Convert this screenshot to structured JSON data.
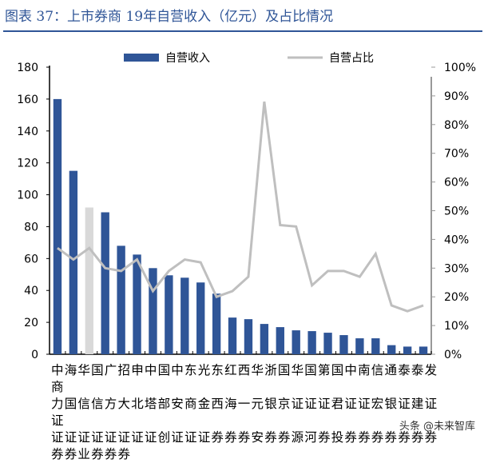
{
  "title": "图表 37：上市券商 19年自营收入（亿元）及占比情况",
  "watermark": "头条 @未来智库",
  "label_lines": [
    "中海华国广招申中国中东光东红西华浙国华国第国中南信通泰泰发商",
    "力国信信方大北塔部安商金西海一元银京证证证君证证宏银证建证证",
    "证证证证证证证证创证证证券券券安券券源河券投券券券券券券券",
    "券券业券券券"
  ],
  "chart_data": {
    "type": "bar+line",
    "legend": [
      "自营收入",
      "自营占比"
    ],
    "legend_position": "top",
    "colors": {
      "bar": "#2f5597",
      "highlight_bar": "#d9d9d9",
      "line": "#bfbfbf"
    },
    "highlight_index": 2,
    "left_axis": {
      "ylim": [
        0,
        180
      ],
      "ticks": [
        "0",
        "20",
        "40",
        "60",
        "80",
        "100",
        "120",
        "140",
        "160",
        "180"
      ]
    },
    "right_axis": {
      "ylim": [
        0,
        100
      ],
      "ticks": [
        "0%",
        "10%",
        "20%",
        "30%",
        "40%",
        "50%",
        "60%",
        "70%",
        "80%",
        "90%",
        "100%"
      ]
    },
    "series": [
      {
        "name": "自营收入",
        "type": "bar",
        "values": [
          160,
          115,
          92,
          89,
          68,
          62.5,
          54,
          49.5,
          48,
          45,
          38,
          23,
          22,
          19,
          17,
          15,
          14.5,
          13.5,
          12,
          10,
          10,
          5.7,
          4.8,
          4.8
        ]
      },
      {
        "name": "自营占比",
        "type": "line",
        "values": [
          37,
          33,
          37,
          30,
          29,
          33,
          22,
          29,
          33,
          32,
          20,
          22,
          27,
          88,
          45,
          44.5,
          24,
          29,
          29,
          27,
          35,
          17,
          15,
          17
        ]
      }
    ]
  }
}
